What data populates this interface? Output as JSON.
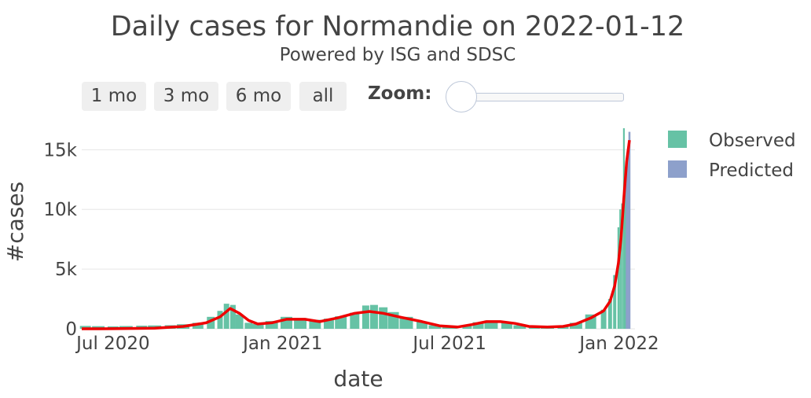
{
  "header": {
    "title": "Daily cases for Normandie on 2022-01-12",
    "subtitle": "Powered by ISG and SDSC"
  },
  "range_selector": {
    "buttons": [
      "1 mo",
      "3 mo",
      "6 mo",
      "all"
    ],
    "zoom_label": "Zoom:",
    "zoom_level": 0
  },
  "colors": {
    "observed": "#66c2a5",
    "predicted": "#8da0cb",
    "trend": "#ee0000",
    "gridline": "#e6e6e6"
  },
  "chart_data": {
    "type": "bar",
    "title": "Daily cases for Normandie on 2022-01-12",
    "subtitle": "Powered by ISG and SDSC",
    "xlabel": "date",
    "ylabel": "#cases",
    "x_range": [
      "2020-05-28",
      "2022-01-18"
    ],
    "ylim": [
      0,
      17000
    ],
    "x_ticks": [
      {
        "date": "2020-07-01",
        "label": "Jul 2020"
      },
      {
        "date": "2021-01-01",
        "label": "Jan 2021"
      },
      {
        "date": "2021-07-01",
        "label": "Jul 2021"
      },
      {
        "date": "2022-01-01",
        "label": "Jan 2022"
      }
    ],
    "y_ticks": [
      {
        "value": 0,
        "label": "0"
      },
      {
        "value": 5000,
        "label": "5k"
      },
      {
        "value": 10000,
        "label": "10k"
      },
      {
        "value": 15000,
        "label": "15k"
      }
    ],
    "grid": true,
    "legend_position": "top-right",
    "legend": [
      "Observed",
      "Predicted"
    ],
    "series": [
      {
        "name": "Observed",
        "kind": "bar",
        "points": [
          [
            "2020-06-01",
            240
          ],
          [
            "2020-06-15",
            220
          ],
          [
            "2020-07-01",
            200
          ],
          [
            "2020-07-15",
            230
          ],
          [
            "2020-08-01",
            260
          ],
          [
            "2020-08-15",
            280
          ],
          [
            "2020-09-01",
            300
          ],
          [
            "2020-09-15",
            380
          ],
          [
            "2020-10-01",
            500
          ],
          [
            "2020-10-15",
            1000
          ],
          [
            "2020-10-25",
            1500
          ],
          [
            "2020-11-01",
            2100
          ],
          [
            "2020-11-08",
            2000
          ],
          [
            "2020-11-15",
            1200
          ],
          [
            "2020-11-25",
            500
          ],
          [
            "2020-12-05",
            400
          ],
          [
            "2020-12-20",
            650
          ],
          [
            "2021-01-05",
            1000
          ],
          [
            "2021-01-20",
            900
          ],
          [
            "2021-02-05",
            750
          ],
          [
            "2021-02-20",
            850
          ],
          [
            "2021-03-05",
            1050
          ],
          [
            "2021-03-20",
            1350
          ],
          [
            "2021-04-01",
            1950
          ],
          [
            "2021-04-10",
            2000
          ],
          [
            "2021-04-20",
            1800
          ],
          [
            "2021-05-01",
            1400
          ],
          [
            "2021-05-15",
            1000
          ],
          [
            "2021-06-01",
            600
          ],
          [
            "2021-06-15",
            300
          ],
          [
            "2021-07-01",
            200
          ],
          [
            "2021-07-20",
            300
          ],
          [
            "2021-08-01",
            550
          ],
          [
            "2021-08-15",
            700
          ],
          [
            "2021-09-01",
            550
          ],
          [
            "2021-09-15",
            300
          ],
          [
            "2021-10-01",
            200
          ],
          [
            "2021-10-15",
            150
          ],
          [
            "2021-11-01",
            250
          ],
          [
            "2021-11-15",
            500
          ],
          [
            "2021-12-01",
            1200
          ],
          [
            "2021-12-15",
            1600
          ],
          [
            "2021-12-22",
            2500
          ],
          [
            "2021-12-27",
            4500
          ],
          [
            "2021-12-31",
            8500
          ],
          [
            "2022-01-02",
            10000
          ],
          [
            "2022-01-04",
            10500
          ],
          [
            "2022-01-06",
            16800
          ],
          [
            "2022-01-08",
            12000
          ]
        ]
      },
      {
        "name": "Predicted",
        "kind": "bar",
        "points": [
          [
            "2022-01-09",
            13500
          ],
          [
            "2022-01-10",
            14800
          ],
          [
            "2022-01-11",
            15500
          ],
          [
            "2022-01-12",
            16500
          ]
        ]
      },
      {
        "name": "trend",
        "kind": "line",
        "points": [
          [
            "2020-05-28",
            0
          ],
          [
            "2020-07-01",
            5
          ],
          [
            "2020-08-15",
            50
          ],
          [
            "2020-09-15",
            200
          ],
          [
            "2020-10-10",
            500
          ],
          [
            "2020-10-25",
            1000
          ],
          [
            "2020-11-05",
            1700
          ],
          [
            "2020-11-15",
            1300
          ],
          [
            "2020-11-25",
            700
          ],
          [
            "2020-12-05",
            400
          ],
          [
            "2020-12-20",
            500
          ],
          [
            "2021-01-05",
            800
          ],
          [
            "2021-01-25",
            800
          ],
          [
            "2021-02-10",
            600
          ],
          [
            "2021-03-01",
            900
          ],
          [
            "2021-03-20",
            1300
          ],
          [
            "2021-04-05",
            1450
          ],
          [
            "2021-04-20",
            1300
          ],
          [
            "2021-05-10",
            950
          ],
          [
            "2021-06-01",
            600
          ],
          [
            "2021-06-20",
            250
          ],
          [
            "2021-07-10",
            150
          ],
          [
            "2021-07-25",
            350
          ],
          [
            "2021-08-10",
            600
          ],
          [
            "2021-08-25",
            600
          ],
          [
            "2021-09-10",
            450
          ],
          [
            "2021-09-25",
            200
          ],
          [
            "2021-10-15",
            150
          ],
          [
            "2021-11-01",
            200
          ],
          [
            "2021-11-15",
            400
          ],
          [
            "2021-12-01",
            900
          ],
          [
            "2021-12-15",
            1500
          ],
          [
            "2021-12-22",
            2300
          ],
          [
            "2021-12-27",
            3600
          ],
          [
            "2021-12-31",
            5500
          ],
          [
            "2022-01-03",
            7700
          ],
          [
            "2022-01-06",
            11000
          ],
          [
            "2022-01-09",
            14000
          ],
          [
            "2022-01-12",
            15800
          ]
        ]
      }
    ]
  }
}
